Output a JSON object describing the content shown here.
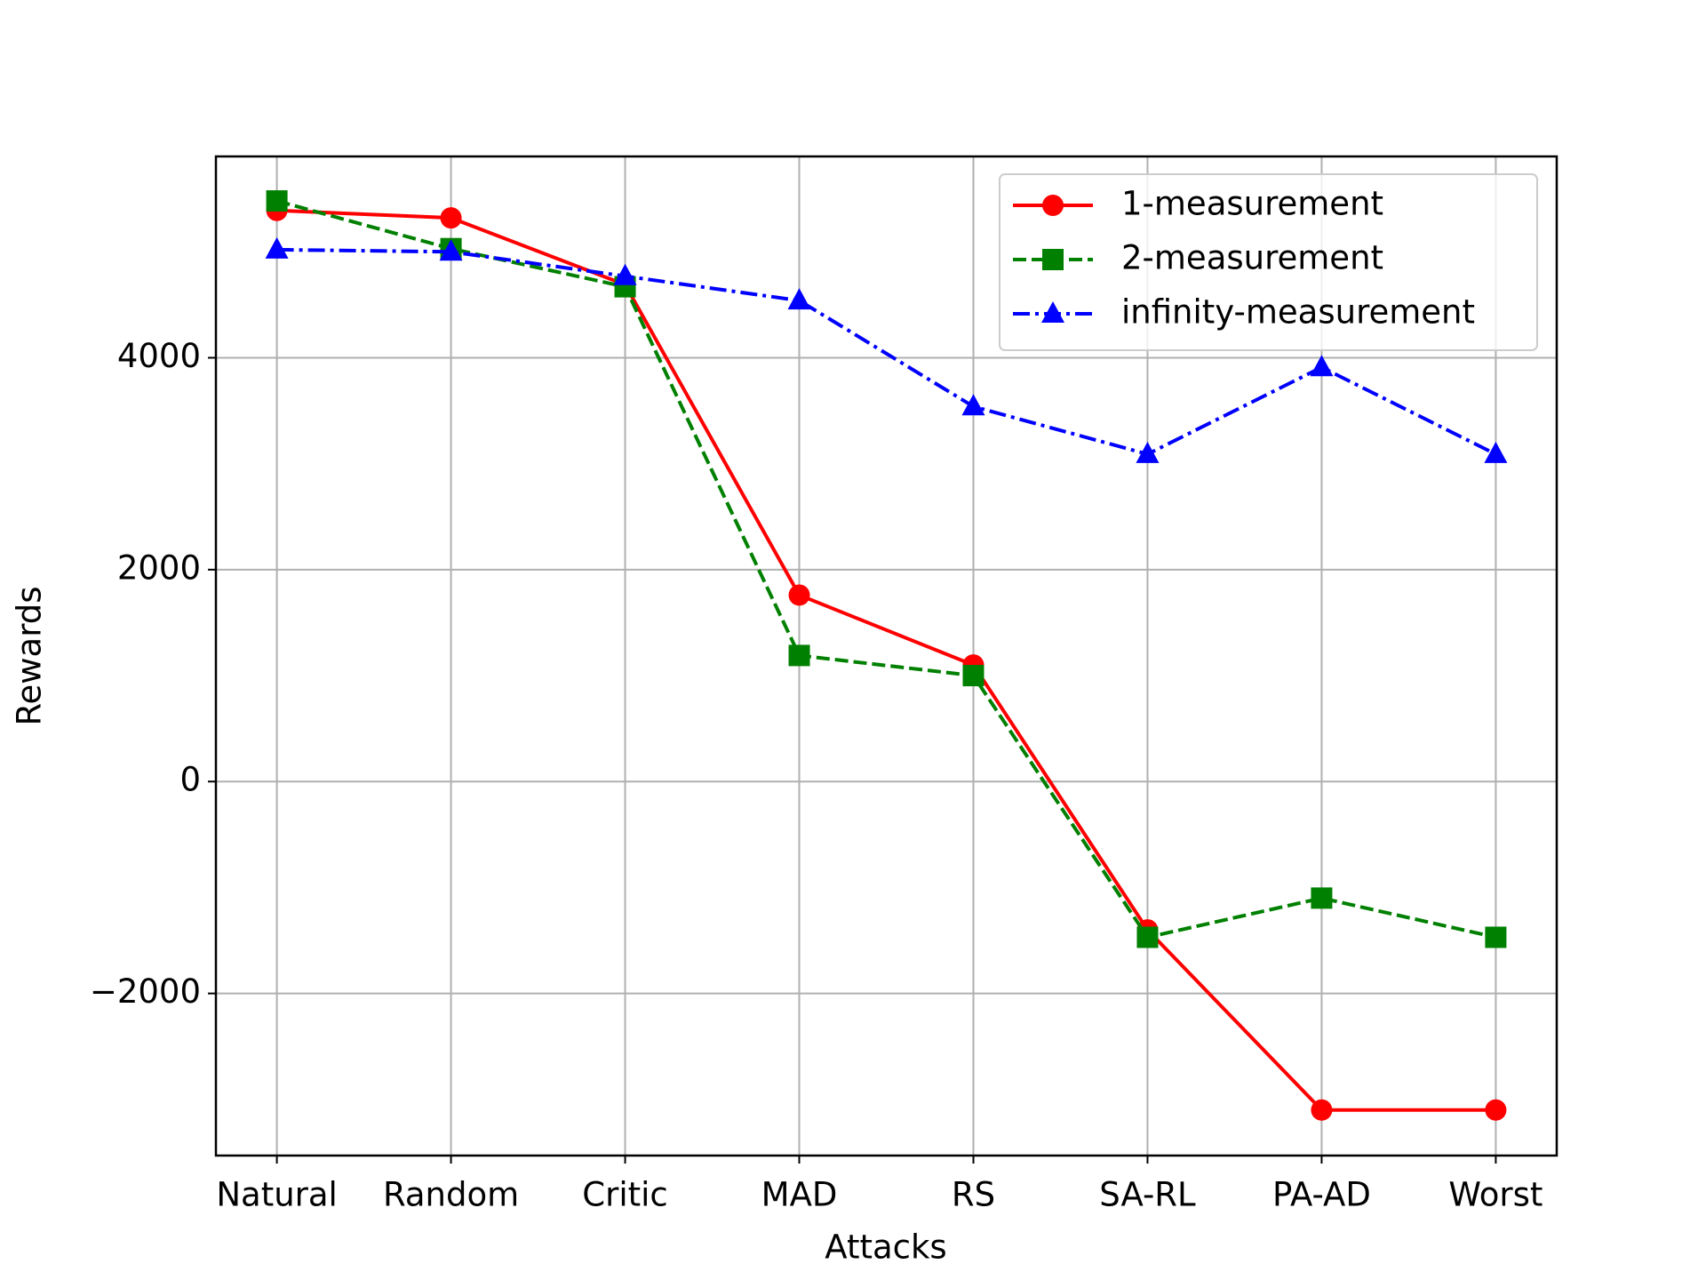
{
  "chart_data": {
    "type": "line",
    "xlabel": "Attacks",
    "ylabel": "Rewards",
    "categories": [
      "Natural",
      "Random",
      "Critic",
      "MAD",
      "RS",
      "SA-RL",
      "PA-AD",
      "Worst"
    ],
    "series": [
      {
        "name": "1-measurement",
        "color": "#ff0000",
        "linestyle": "solid",
        "marker": "circle",
        "values": [
          5390,
          5320,
          4690,
          1760,
          1100,
          -1400,
          -3100,
          -3100
        ]
      },
      {
        "name": "2-measurement",
        "color": "#008000",
        "linestyle": "dashed",
        "marker": "square",
        "values": [
          5480,
          5030,
          4670,
          1190,
          1000,
          -1470,
          -1100,
          -1470
        ]
      },
      {
        "name": "infinity-measurement",
        "color": "#0000ff",
        "linestyle": "dashdot",
        "marker": "triangle",
        "values": [
          5020,
          5000,
          4770,
          4540,
          3540,
          3090,
          3910,
          3090
        ]
      }
    ],
    "ylim": [
      -3530,
      5900
    ],
    "yticks": [
      {
        "value": -2000,
        "label": "−2000"
      },
      0,
      2000,
      4000
    ],
    "grid": true,
    "legend": "upper right"
  }
}
